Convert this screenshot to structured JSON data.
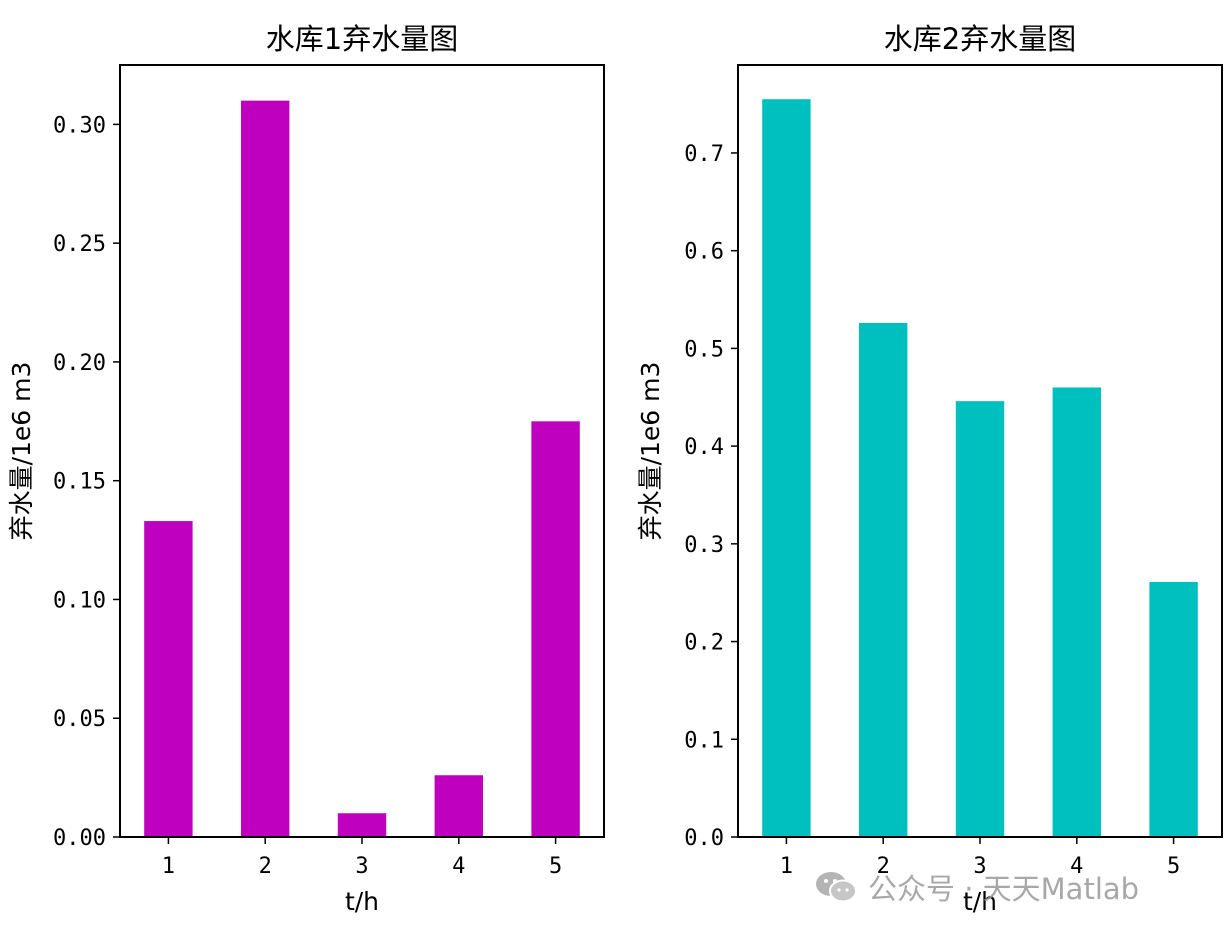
{
  "chart_data": [
    {
      "type": "bar",
      "title": "水库1弃水量图",
      "xlabel": "t/h",
      "ylabel": "弃水量/1e6 m3",
      "categories": [
        "1",
        "2",
        "3",
        "4",
        "5"
      ],
      "values": [
        0.133,
        0.31,
        0.01,
        0.026,
        0.175
      ],
      "color": "#bf00bf",
      "ylim": [
        0,
        0.325
      ],
      "yticks": [
        0.0,
        0.05,
        0.1,
        0.15,
        0.2,
        0.25,
        0.3
      ],
      "ytick_labels": [
        "0.00",
        "0.05",
        "0.10",
        "0.15",
        "0.20",
        "0.25",
        "0.30"
      ],
      "grid": false,
      "legend": "none"
    },
    {
      "type": "bar",
      "title": "水库2弃水量图",
      "xlabel": "t/h",
      "ylabel": "弃水量/1e6 m3",
      "categories": [
        "1",
        "2",
        "3",
        "4",
        "5"
      ],
      "values": [
        0.755,
        0.526,
        0.446,
        0.46,
        0.261
      ],
      "color": "#00bfbf",
      "ylim": [
        0,
        0.79
      ],
      "yticks": [
        0.0,
        0.1,
        0.2,
        0.3,
        0.4,
        0.5,
        0.6,
        0.7
      ],
      "ytick_labels": [
        "0.0",
        "0.1",
        "0.2",
        "0.3",
        "0.4",
        "0.5",
        "0.6",
        "0.7"
      ],
      "grid": false,
      "legend": "none"
    }
  ],
  "watermark": {
    "text": "公众号 · 天天Matlab",
    "icon": "wechat-icon"
  }
}
